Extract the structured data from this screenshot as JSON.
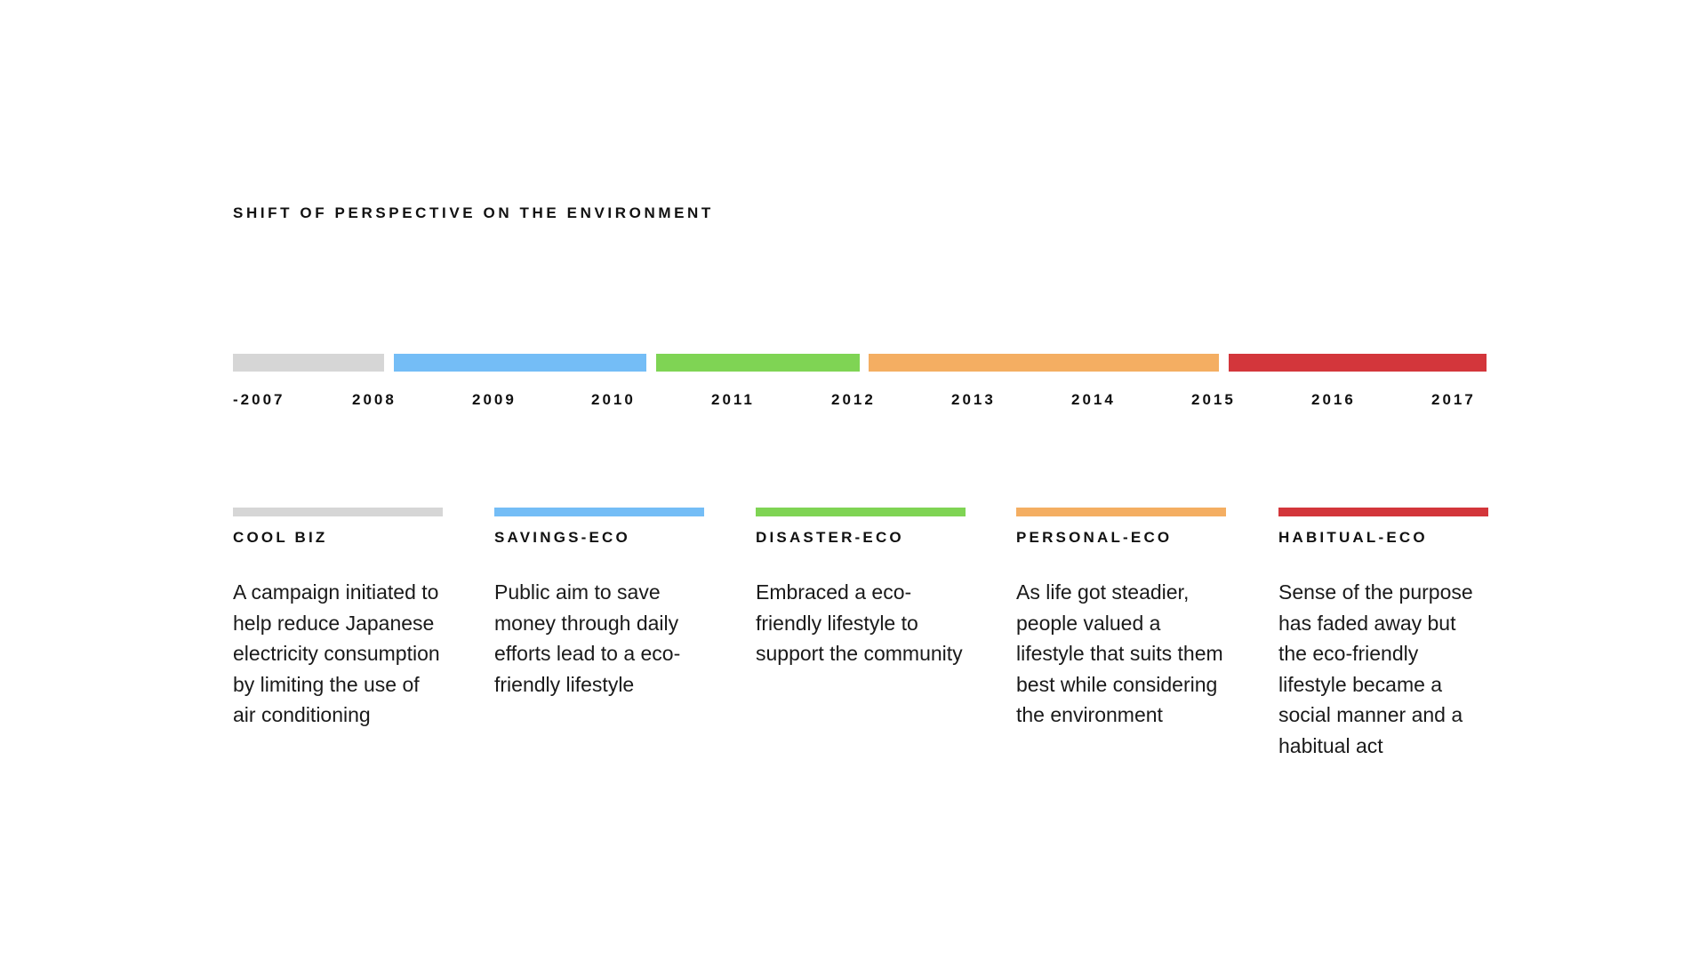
{
  "title": "SHIFT OF PERSPECTIVE ON THE ENVIRONMENT",
  "colors": {
    "gray": "#d6d6d6",
    "blue": "#74bdf6",
    "green": "#7fd454",
    "orange": "#f4ae62",
    "red": "#d3363b"
  },
  "years": [
    "-2007",
    "2008",
    "2009",
    "2010",
    "2011",
    "2012",
    "2013",
    "2014",
    "2015",
    "2016",
    "2017"
  ],
  "eras": [
    {
      "name": "COOL BIZ",
      "color": "#d6d6d6",
      "description": "A campaign initiated to help reduce Japanese electricity consumption by limiting the use of air conditioning"
    },
    {
      "name": "SAVINGS-ECO",
      "color": "#74bdf6",
      "description": "Public aim to save money through daily efforts lead to a eco-friendly lifestyle"
    },
    {
      "name": "DISASTER-ECO",
      "color": "#7fd454",
      "description": "Embraced a eco-friendly lifestyle to support the community"
    },
    {
      "name": "PERSONAL-ECO",
      "color": "#f4ae62",
      "description": "As life got steadier, people valued a lifestyle that suits them best while considering the environment"
    },
    {
      "name": "HABITUAL-ECO",
      "color": "#d3363b",
      "description": "Sense of the purpose has faded away but the eco-friendly lifestyle became a social manner and a habitual act"
    }
  ]
}
